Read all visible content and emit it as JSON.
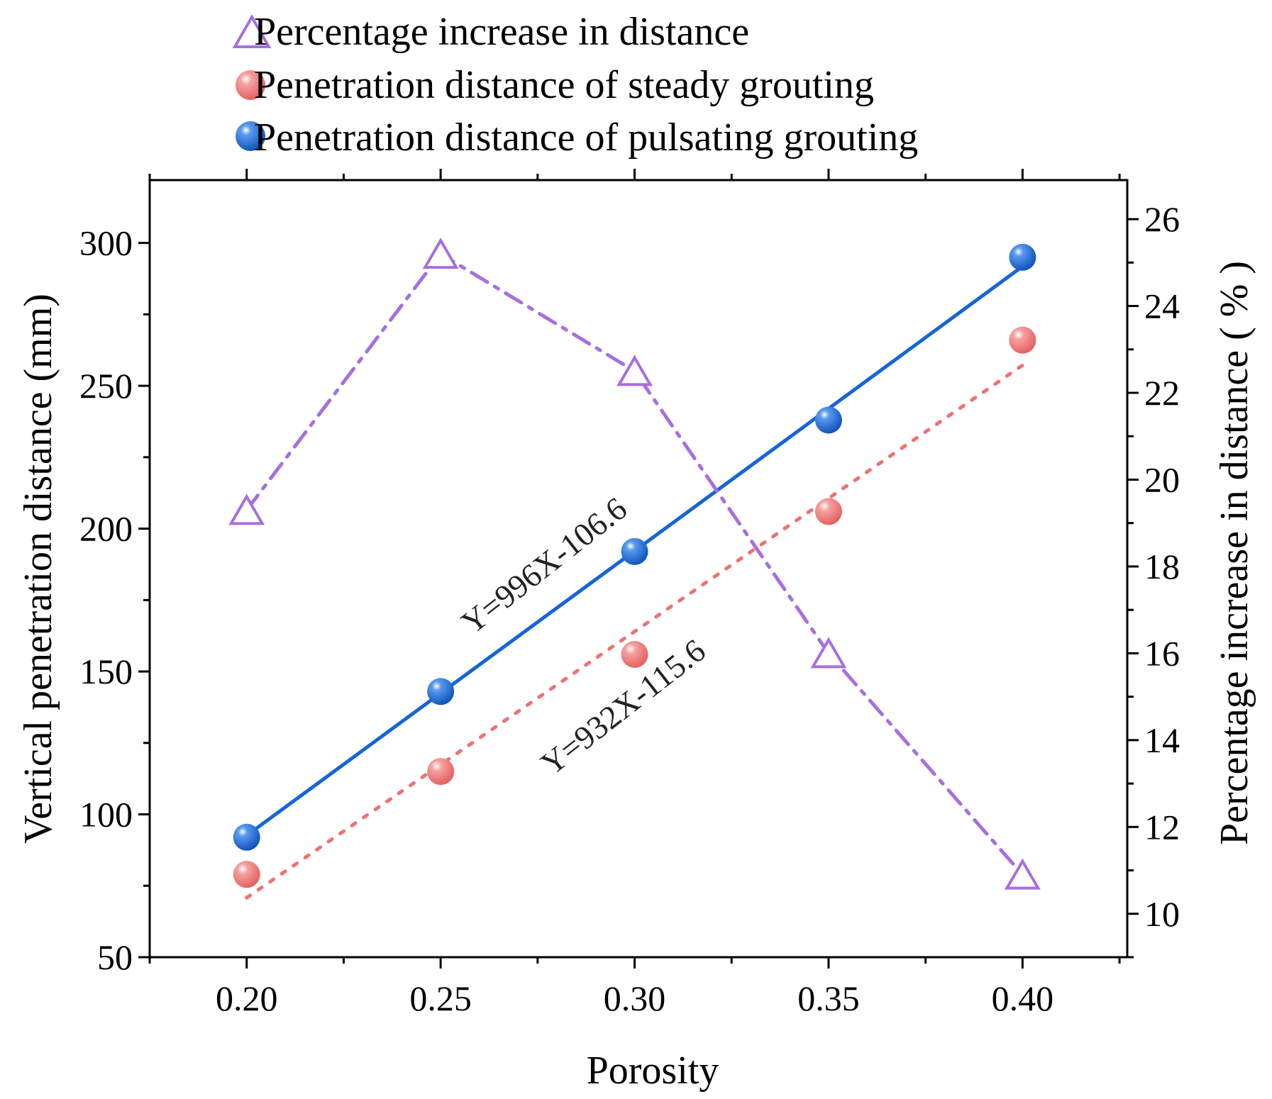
{
  "chart_data": {
    "type": "line",
    "title": "",
    "xlabel": "Porosity",
    "ylabel": "Vertical penetration distance (mm)",
    "y2label": "Percentage increase in distance ( % )",
    "x": [
      0.2,
      0.25,
      0.3,
      0.35,
      0.4
    ],
    "x_tick_labels": [
      "0.20",
      "0.25",
      "0.30",
      "0.35",
      "0.40"
    ],
    "xlim": [
      0.175,
      0.427
    ],
    "ylim": [
      50,
      322
    ],
    "y2lim": [
      9,
      26.9
    ],
    "y_ticks": [
      50,
      100,
      150,
      200,
      250,
      300
    ],
    "y_tick_labels": [
      "50",
      "100",
      "150",
      "200",
      "250",
      "300"
    ],
    "y2_ticks": [
      10,
      12,
      14,
      16,
      18,
      20,
      22,
      24,
      26
    ],
    "y2_tick_labels": [
      "10",
      "12",
      "14",
      "16",
      "18",
      "20",
      "22",
      "24",
      "26"
    ],
    "legend_position": "top",
    "series": [
      {
        "name": "Percentage increase in distance",
        "axis": "right",
        "marker": "triangle",
        "line_style": "dash-dot",
        "color": "#a66fe0",
        "values": [
          19.3,
          25.2,
          22.5,
          16.0,
          10.9
        ]
      },
      {
        "name": "Penetration distance of steady grouting",
        "axis": "left",
        "marker": "sphere",
        "color": "#f07070",
        "values": [
          79,
          115,
          156,
          206,
          266
        ],
        "fit": {
          "label": "Y=932X-115.6",
          "slope": 932,
          "intercept": -115.6,
          "line_style": "dotted",
          "color": "#f07070"
        }
      },
      {
        "name": "Penetration distance of pulsating grouting",
        "axis": "left",
        "marker": "sphere",
        "color": "#1565d8",
        "values": [
          92,
          143,
          192,
          238,
          295
        ],
        "fit": {
          "label": "Y=996X-106.6",
          "slope": 996,
          "intercept": -106.6,
          "line_style": "solid",
          "color": "#1565d8"
        }
      }
    ]
  }
}
